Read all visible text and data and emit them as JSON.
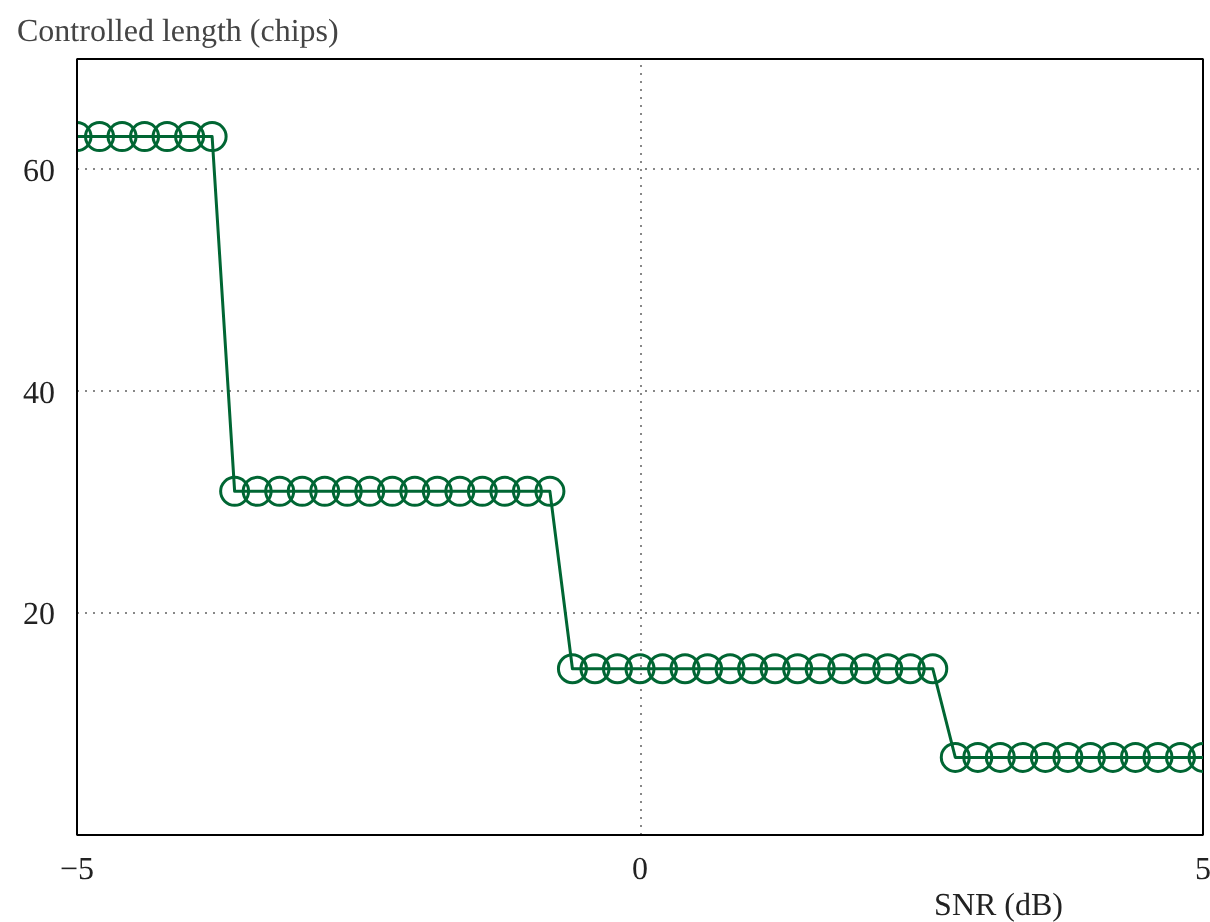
{
  "chart_data": {
    "type": "step",
    "xlabel": "SNR (dB)",
    "ylabel": "Controlled length (chips)",
    "x": [
      -5,
      -4.8,
      -4.6,
      -4.4,
      -4.2,
      -4,
      -3.8,
      -3.6,
      -3.4,
      -3.2,
      -3,
      -2.8,
      -2.6,
      -2.4,
      -2.2,
      -2,
      -1.8,
      -1.6,
      -1.4,
      -1.2,
      -1,
      -0.8,
      -0.6,
      -0.4,
      -0.2,
      0,
      0.2,
      0.4,
      0.6,
      0.8,
      1,
      1.2,
      1.4,
      1.6,
      1.8,
      2,
      2.2,
      2.4,
      2.6,
      2.8,
      3,
      3.2,
      3.4,
      3.6,
      3.8,
      4,
      4.2,
      4.4,
      4.6,
      4.8,
      5
    ],
    "series": [
      {
        "color": "#006633",
        "values": [
          63,
          63,
          63,
          63,
          63,
          63,
          63,
          31,
          31,
          31,
          31,
          31,
          31,
          31,
          31,
          31,
          31,
          31,
          31,
          31,
          31,
          31,
          15,
          15,
          15,
          15,
          15,
          15,
          15,
          15,
          15,
          15,
          15,
          15,
          15,
          15,
          15,
          15,
          15,
          7,
          7,
          7,
          7,
          7,
          7,
          7,
          7,
          7,
          7,
          7,
          7
        ]
      }
    ],
    "xlim": [
      -5,
      5
    ],
    "ylim": [
      0,
      70
    ],
    "xticks": [
      -5,
      0,
      5
    ],
    "yticks": [
      20,
      40,
      60
    ],
    "grid": true,
    "marker": "circle",
    "line_style": "solid"
  }
}
